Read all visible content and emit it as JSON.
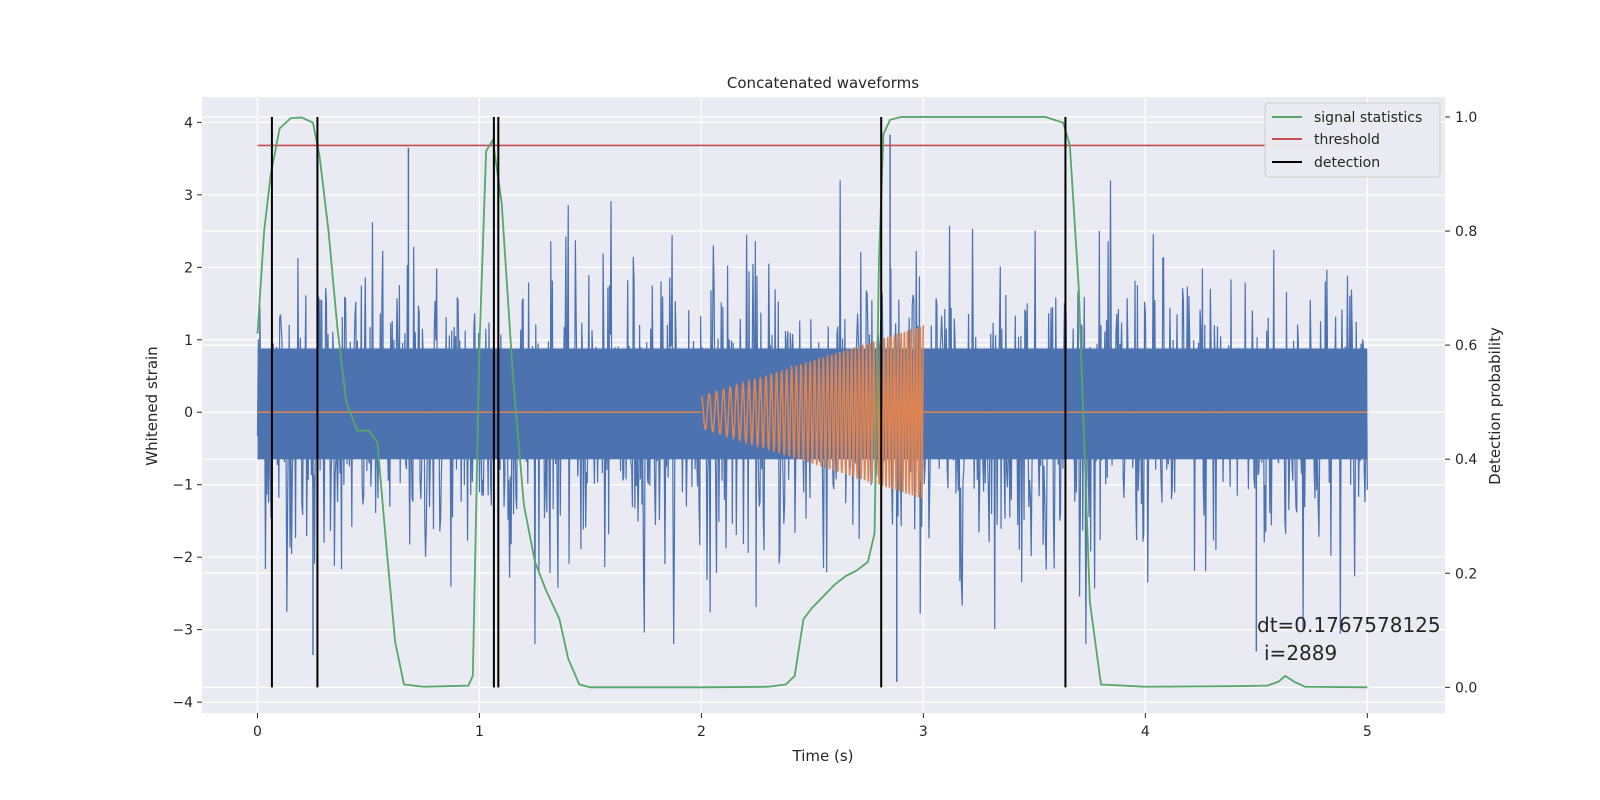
{
  "chart_data": {
    "type": "line",
    "title": "Concatenated waveforms",
    "xlabel": "Time (s)",
    "ylabel_left": "Whitened strain",
    "ylabel_right": "Detection probability",
    "xlim": [
      -0.25,
      5.35
    ],
    "ylim_left": [
      -4.15,
      4.35
    ],
    "ylim_right": [
      -0.045,
      1.035
    ],
    "x_ticks": [
      0,
      1,
      2,
      3,
      4,
      5
    ],
    "y_left_ticks": [
      -4,
      -3,
      -2,
      -1,
      0,
      1,
      2,
      3,
      4
    ],
    "y_right_ticks": [
      0.0,
      0.2,
      0.4,
      0.6,
      0.8,
      1.0
    ],
    "grid": true,
    "legend_position": "top-right",
    "colors": {
      "strain": "#4c72b0",
      "injection": "#dd8452",
      "signal_statistics": "#55a868",
      "threshold": "#c44e52",
      "detection": "#000000",
      "background": "#eaeaf2"
    },
    "legend": [
      {
        "label": "signal statistics",
        "color": "#55a868"
      },
      {
        "label": "threshold",
        "color": "#c44e52"
      },
      {
        "label": "detection",
        "color": "#000000"
      }
    ],
    "series": [
      {
        "name": "signal statistics",
        "axis": "right",
        "x": [
          0.0,
          0.03,
          0.06,
          0.1,
          0.15,
          0.2,
          0.25,
          0.28,
          0.32,
          0.36,
          0.4,
          0.45,
          0.5,
          0.54,
          0.58,
          0.62,
          0.66,
          0.75,
          0.85,
          0.95,
          0.97,
          1.0,
          1.03,
          1.06,
          1.1,
          1.15,
          1.2,
          1.25,
          1.3,
          1.36,
          1.4,
          1.45,
          1.5,
          1.7,
          2.0,
          2.3,
          2.38,
          2.42,
          2.46,
          2.5,
          2.55,
          2.6,
          2.65,
          2.7,
          2.75,
          2.78,
          2.8,
          2.82,
          2.85,
          2.9,
          3.0,
          3.3,
          3.55,
          3.63,
          3.66,
          3.7,
          3.75,
          3.8,
          4.0,
          4.4,
          4.55,
          4.6,
          4.63,
          4.67,
          4.72,
          5.0
        ],
        "y": [
          0.62,
          0.8,
          0.9,
          0.98,
          0.998,
          0.999,
          0.99,
          0.93,
          0.8,
          0.63,
          0.5,
          0.45,
          0.45,
          0.43,
          0.25,
          0.08,
          0.005,
          0.001,
          0.002,
          0.003,
          0.02,
          0.6,
          0.94,
          0.96,
          0.85,
          0.55,
          0.32,
          0.22,
          0.17,
          0.12,
          0.05,
          0.005,
          0.0,
          0.0,
          0.0,
          0.001,
          0.005,
          0.02,
          0.12,
          0.14,
          0.16,
          0.18,
          0.195,
          0.205,
          0.22,
          0.27,
          0.75,
          0.97,
          0.995,
          1.0,
          1.0,
          1.0,
          1.0,
          0.99,
          0.95,
          0.7,
          0.15,
          0.005,
          0.001,
          0.002,
          0.003,
          0.01,
          0.02,
          0.01,
          0.001,
          0.0
        ]
      },
      {
        "name": "threshold",
        "axis": "right",
        "x": [
          0.0,
          5.0
        ],
        "y": [
          0.95,
          0.95
        ]
      }
    ],
    "detections_x": [
      0.065,
      0.27,
      1.065,
      1.085,
      2.81,
      3.64
    ],
    "noise_track": {
      "axis": "left",
      "x_range": [
        0.0,
        5.0
      ],
      "band": [
        -0.65,
        0.88
      ],
      "spike_peaks": [
        {
          "x": 0.68,
          "y": 3.65
        },
        {
          "x": 2.85,
          "y": 3.83
        },
        {
          "x": 2.88,
          "y": -3.72
        },
        {
          "x": 0.25,
          "y": -3.35
        },
        {
          "x": 4.5,
          "y": -3.3
        }
      ]
    },
    "injection": {
      "axis": "left",
      "x_range": [
        2.0,
        3.0
      ],
      "amplitude_start": 0.22,
      "amplitude_end": 1.2
    },
    "annotation": {
      "line1": "dt=0.1767578125",
      "line2": "i=2889"
    }
  }
}
